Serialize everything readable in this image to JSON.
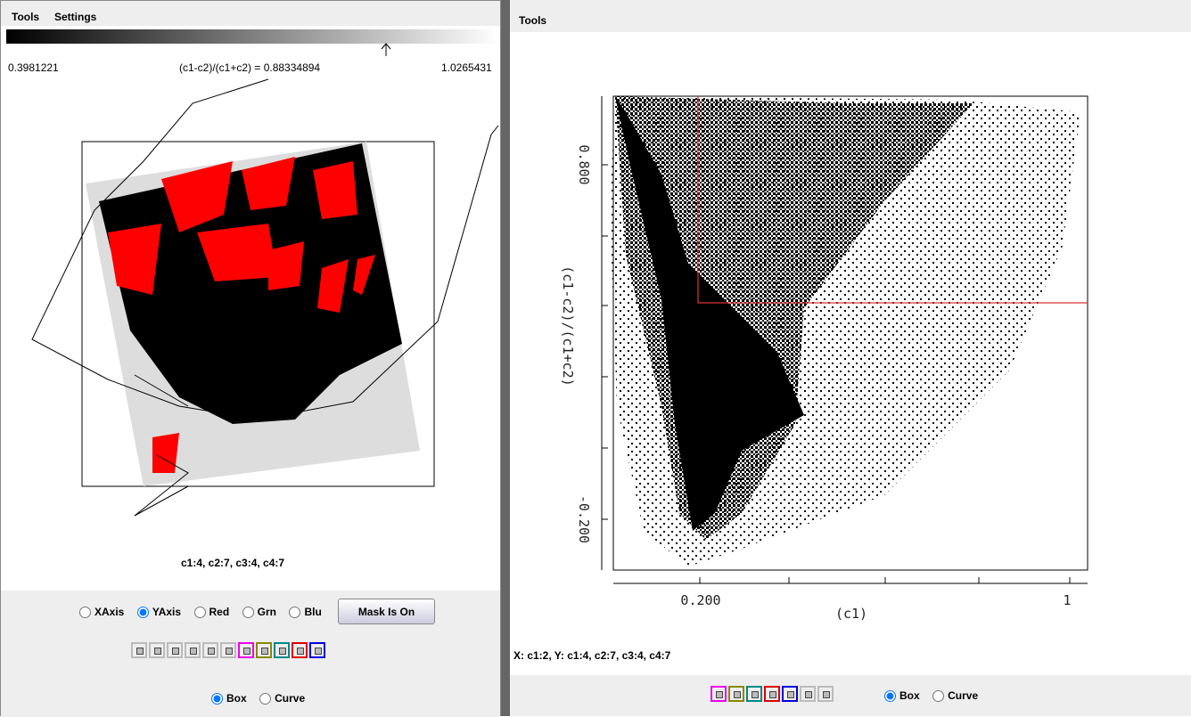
{
  "left_panel": {
    "menu": [
      "Tools",
      "Settings"
    ],
    "range_min": "0.3981221",
    "formula": "(c1-c2)/(c1+c2) = 0.88334894",
    "range_max": "1.0265431",
    "caption": "c1:4, c2:7, c3:4, c4:7",
    "radios": [
      "XAxis",
      "YAxis",
      "Red",
      "Grn",
      "Blu"
    ],
    "mask_button": "Mask Is On",
    "mode_radios": [
      "Box",
      "Curve"
    ]
  },
  "right_panel": {
    "menu": [
      "Tools"
    ],
    "x_axis_label": "(c1)",
    "y_axis_label": "(c1-c2)/(c1+c2)",
    "x_tick_labels": [
      "0.200",
      "1"
    ],
    "y_tick_labels": [
      "0.800",
      "-0.200"
    ],
    "status": "X: c1:2,  Y: c1:4, c2:7, c3:4, c4:7",
    "mode_radios": [
      "Box",
      "Curve"
    ]
  }
}
